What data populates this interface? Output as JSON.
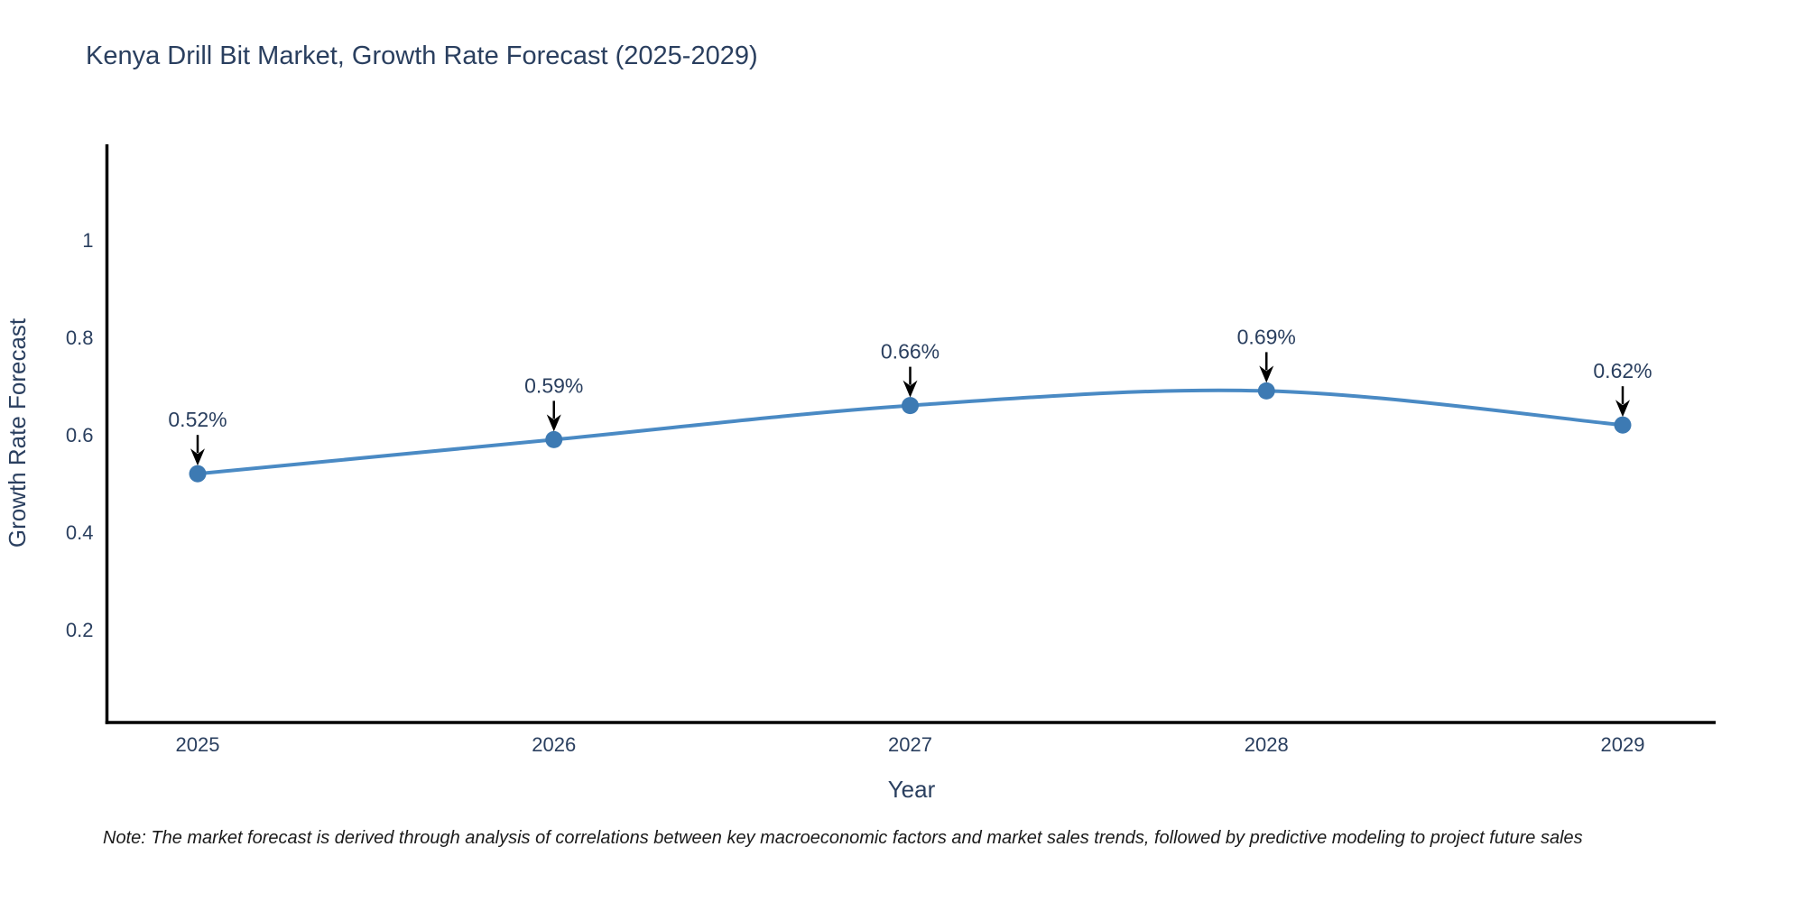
{
  "page": {
    "footnote": "Note: The market forecast is derived through analysis of correlations between key macroeconomic factors and market sales trends, followed by predictive modeling to project future sales"
  },
  "chart_data": {
    "type": "line",
    "title": "Kenya Drill Bit Market, Growth Rate Forecast (2025-2029)",
    "xlabel": "Year",
    "ylabel": "Growth Rate Forecast",
    "x": [
      2025,
      2026,
      2027,
      2028,
      2029
    ],
    "categories": [
      "2025",
      "2026",
      "2027",
      "2028",
      "2029"
    ],
    "series": [
      {
        "name": "Growth Rate Forecast",
        "values": [
          0.52,
          0.59,
          0.66,
          0.69,
          0.62
        ],
        "point_labels": [
          "0.52%",
          "0.59%",
          "0.66%",
          "0.69%",
          "0.62%"
        ]
      }
    ],
    "yticks": [
      1,
      0.8,
      0.6,
      0.4,
      0.2
    ],
    "ylim": [
      0,
      1.2
    ],
    "grid": false,
    "legend": false,
    "line_shape": "spline",
    "annotations_have_arrows": true,
    "colors": {
      "line": "#4a8ac4",
      "marker": "#3d7ab3",
      "text": "#2a3f5f",
      "axis": "#000000",
      "arrow": "#000000",
      "background": "#ffffff"
    }
  }
}
